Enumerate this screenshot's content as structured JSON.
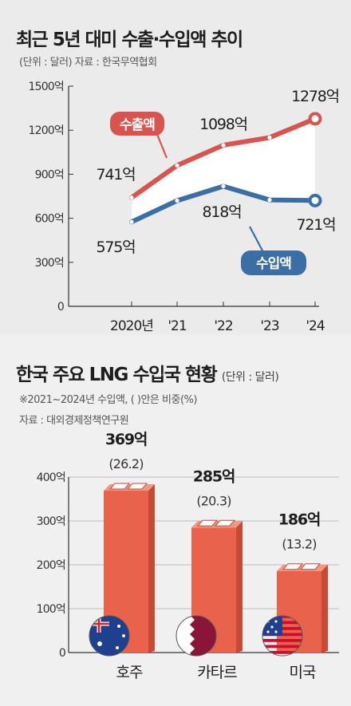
{
  "chart1": {
    "title": "최근 5년 대미 수출·수입액 추이",
    "subtitle": "(단위 : 달러)   자료 : 한국무역협회",
    "chart_data": {
      "type": "line",
      "x": [
        "2020년",
        "'21",
        "'22",
        "'23",
        "'24"
      ],
      "ylim": [
        0,
        1500
      ],
      "yticks": [
        "1500억",
        "1200억",
        "900억",
        "600억",
        "300억",
        "0"
      ],
      "ytick_values": [
        1500,
        1200,
        900,
        600,
        300,
        0
      ],
      "series": [
        {
          "name": "수출액",
          "values": [
            741,
            960,
            1098,
            1150,
            1278
          ],
          "color": "#d9534f"
        },
        {
          "name": "수입액",
          "values": [
            575,
            720,
            818,
            725,
            721
          ],
          "color": "#3a6ea5"
        }
      ],
      "annotations": [
        "741억",
        "1098억",
        "1278억",
        "575억",
        "818억",
        "721억"
      ],
      "grid": false
    }
  },
  "chart2": {
    "title": "한국 주요 LNG 수입국 현황",
    "unit": "(단위 : 달러)",
    "note": "※2021~2024년 수입액, ( )안은 비중(%)",
    "source": "자료 : 대외경제정책연구원",
    "chart_data": {
      "type": "bar",
      "categories": [
        "호주",
        "카타르",
        "미국"
      ],
      "values": [
        369,
        285,
        186
      ],
      "value_labels": [
        "369억",
        "285억",
        "186억"
      ],
      "share_labels": [
        "(26.2)",
        "(20.3)",
        "(13.2)"
      ],
      "ylim": [
        0,
        400
      ],
      "yticks": [
        "400억",
        "300억",
        "200억",
        "100억",
        "0"
      ],
      "ytick_values": [
        400,
        300,
        200,
        100,
        0
      ],
      "bar_color": "#e8624c",
      "grid": true
    }
  }
}
